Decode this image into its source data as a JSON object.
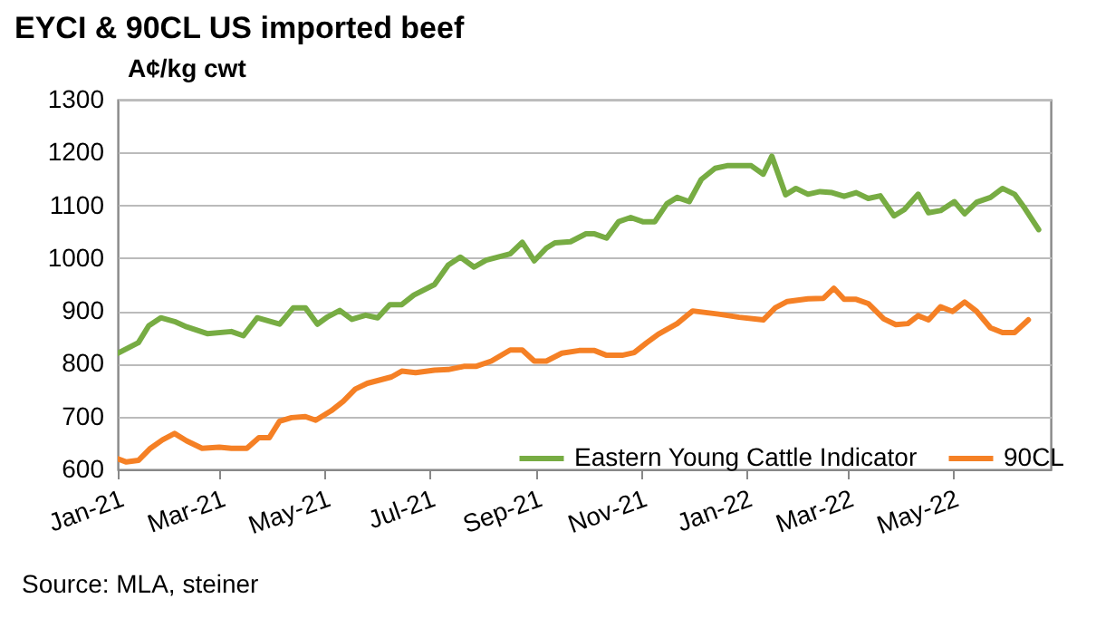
{
  "chart_data": {
    "type": "line",
    "title": "EYCI & 90CL US imported beef",
    "ylabel": "A¢/kg cwt",
    "annotations": [
      "Source:  MLA, steiner"
    ],
    "xlim": [
      "2021-01-01",
      "2022-06-27"
    ],
    "xticks": [
      {
        "value": "2021-01-01",
        "label": "Jan-21"
      },
      {
        "value": "2021-03-01",
        "label": "Mar-21"
      },
      {
        "value": "2021-05-01",
        "label": "May-21"
      },
      {
        "value": "2021-07-01",
        "label": "Jul-21"
      },
      {
        "value": "2021-09-01",
        "label": "Sep-21"
      },
      {
        "value": "2021-11-01",
        "label": "Nov-21"
      },
      {
        "value": "2022-01-01",
        "label": "Jan-22"
      },
      {
        "value": "2022-03-01",
        "label": "Mar-22"
      },
      {
        "value": "2022-05-01",
        "label": "May-22"
      }
    ],
    "ylim": [
      600,
      1300
    ],
    "yticks": [
      600,
      700,
      800,
      900,
      1000,
      1100,
      1200,
      1300
    ],
    "grid": "y",
    "legend": "bottom",
    "line_style": "solid",
    "series": [
      {
        "name": "Eastern Young Cattle Indicator",
        "color": "#77ac43",
        "x": [
          "2021-01-01",
          "2021-01-13",
          "2021-01-19",
          "2021-01-26",
          "2021-02-03",
          "2021-02-10",
          "2021-02-22",
          "2021-03-08",
          "2021-03-15",
          "2021-03-23",
          "2021-04-05",
          "2021-04-13",
          "2021-04-20",
          "2021-04-27",
          "2021-05-03",
          "2021-05-10",
          "2021-05-17",
          "2021-05-25",
          "2021-06-01",
          "2021-06-08",
          "2021-06-15",
          "2021-06-22",
          "2021-07-04",
          "2021-07-12",
          "2021-07-19",
          "2021-07-27",
          "2021-08-03",
          "2021-08-17",
          "2021-08-24",
          "2021-08-31",
          "2021-09-07",
          "2021-09-12",
          "2021-09-21",
          "2021-09-30",
          "2021-10-05",
          "2021-10-12",
          "2021-10-19",
          "2021-10-26",
          "2021-11-02",
          "2021-11-09",
          "2021-11-16",
          "2021-11-22",
          "2021-11-29",
          "2021-12-06",
          "2021-12-14",
          "2021-12-21",
          "2022-01-04",
          "2022-01-11",
          "2022-01-16",
          "2022-01-24",
          "2022-01-30",
          "2022-02-06",
          "2022-02-13",
          "2022-02-20",
          "2022-02-27",
          "2022-03-06",
          "2022-03-13",
          "2022-03-20",
          "2022-03-28",
          "2022-04-03",
          "2022-04-11",
          "2022-04-17",
          "2022-04-24",
          "2022-05-02",
          "2022-05-08",
          "2022-05-15",
          "2022-05-23",
          "2022-05-30",
          "2022-06-06",
          "2022-06-12",
          "2022-06-20"
        ],
        "values": [
          820,
          840,
          872,
          887,
          880,
          870,
          857,
          861,
          853,
          887,
          875,
          906,
          906,
          875,
          889,
          901,
          884,
          892,
          887,
          912,
          912,
          930,
          950,
          987,
          1002,
          983,
          996,
          1008,
          1030,
          995,
          1019,
          1029,
          1031,
          1046,
          1046,
          1038,
          1069,
          1077,
          1069,
          1069,
          1103,
          1115,
          1107,
          1149,
          1170,
          1175,
          1175,
          1159,
          1193,
          1120,
          1132,
          1121,
          1126,
          1124,
          1117,
          1124,
          1113,
          1118,
          1080,
          1092,
          1121,
          1086,
          1090,
          1107,
          1084,
          1106,
          1115,
          1132,
          1121,
          1094,
          1054
        ]
      },
      {
        "name": "90CL",
        "color": "#f58025",
        "x": [
          "2021-01-01",
          "2021-01-06",
          "2021-01-13",
          "2021-01-20",
          "2021-01-27",
          "2021-02-03",
          "2021-02-10",
          "2021-02-19",
          "2021-03-01",
          "2021-03-08",
          "2021-03-17",
          "2021-03-24",
          "2021-03-30",
          "2021-04-05",
          "2021-04-12",
          "2021-04-20",
          "2021-04-26",
          "2021-05-05",
          "2021-05-12",
          "2021-05-19",
          "2021-05-26",
          "2021-06-02",
          "2021-06-09",
          "2021-06-15",
          "2021-06-23",
          "2021-07-04",
          "2021-07-12",
          "2021-07-21",
          "2021-07-28",
          "2021-08-06",
          "2021-08-17",
          "2021-08-24",
          "2021-08-31",
          "2021-09-07",
          "2021-09-16",
          "2021-09-26",
          "2021-10-05",
          "2021-10-12",
          "2021-10-21",
          "2021-10-28",
          "2021-11-04",
          "2021-11-11",
          "2021-11-22",
          "2021-12-01",
          "2021-12-16",
          "2021-12-28",
          "2022-01-11",
          "2022-01-18",
          "2022-01-25",
          "2022-02-06",
          "2022-02-15",
          "2022-02-21",
          "2022-02-27",
          "2022-03-06",
          "2022-03-13",
          "2022-03-22",
          "2022-03-29",
          "2022-04-05",
          "2022-04-11",
          "2022-04-17",
          "2022-04-24",
          "2022-05-01",
          "2022-05-08",
          "2022-05-15",
          "2022-05-23",
          "2022-05-30",
          "2022-06-06",
          "2022-06-14"
        ],
        "values": [
          620,
          614,
          617,
          640,
          656,
          668,
          654,
          640,
          642,
          640,
          640,
          660,
          660,
          691,
          698,
          700,
          693,
          711,
          729,
          752,
          763,
          769,
          775,
          786,
          783,
          788,
          789,
          795,
          795,
          805,
          826,
          826,
          805,
          805,
          820,
          825,
          825,
          816,
          816,
          821,
          839,
          856,
          876,
          900,
          894,
          888,
          883,
          906,
          918,
          923,
          924,
          943,
          922,
          922,
          914,
          885,
          874,
          876,
          891,
          883,
          908,
          899,
          917,
          899,
          868,
          859,
          859,
          883
        ]
      }
    ]
  }
}
